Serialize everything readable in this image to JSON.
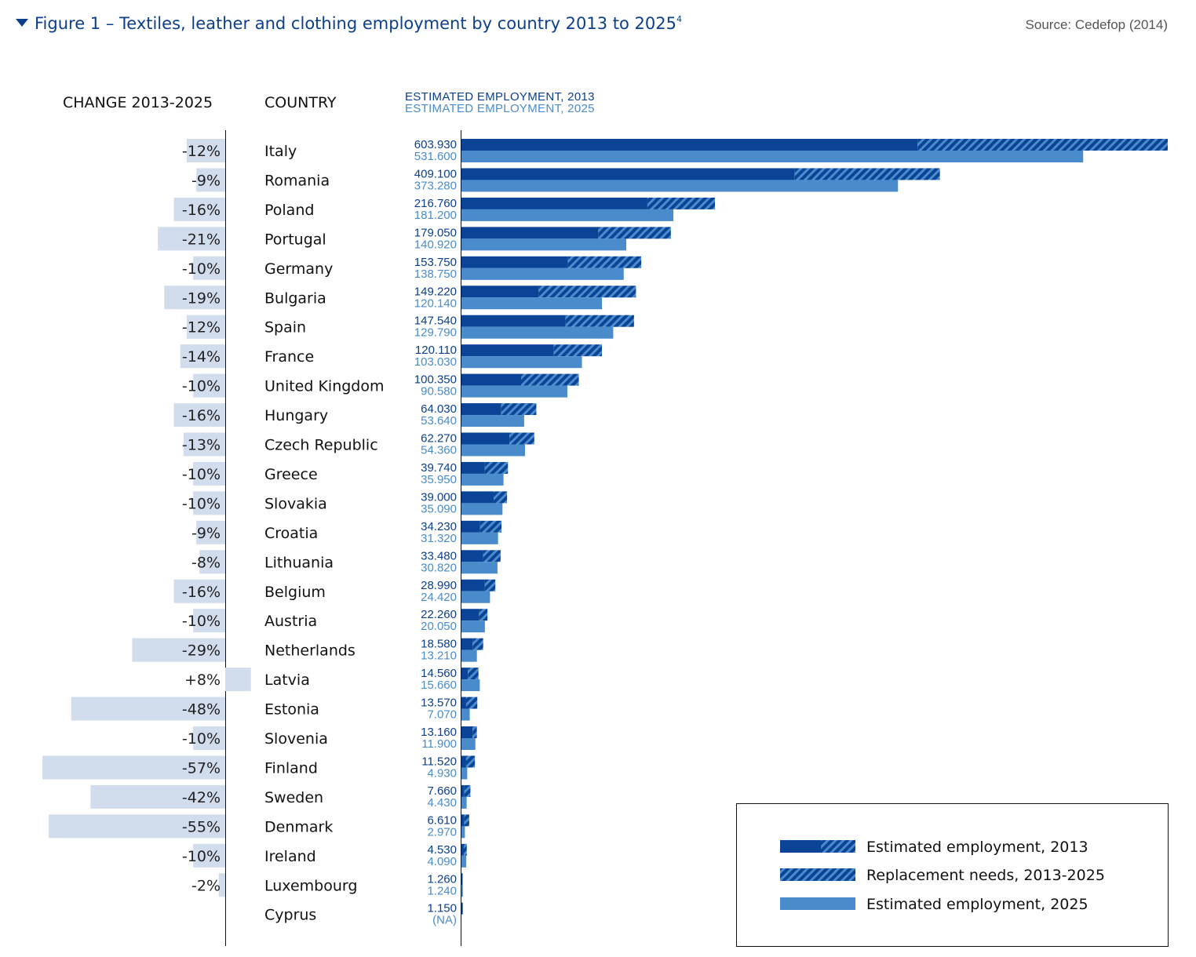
{
  "header": {
    "title": "Figure 1 – Textiles, leather and clothing employment by country 2013 to 2025",
    "title_sup": "4",
    "source": "Source: Cedefop (2014)"
  },
  "columns": {
    "change": "CHANGE 2013-2025",
    "country": "COUNTRY",
    "emp2013": "ESTIMATED EMPLOYMENT, 2013",
    "emp2025": "ESTIMATED EMPLOYMENT, 2025"
  },
  "legend": {
    "emp2013": "Estimated employment, 2013",
    "replacement": "Replacement needs, 2013-2025",
    "emp2025": "Estimated employment, 2025"
  },
  "colors": {
    "dark_blue": "#0b4496",
    "light_blue": "#4a8ccb",
    "change_bar": "#d1dcec",
    "title": "#0b3f8c"
  },
  "chart_data": {
    "type": "bar",
    "orientation": "horizontal",
    "title": "Figure 1 – Textiles, leather and clothing employment by country 2013 to 2025",
    "series_names": [
      "Estimated employment, 2013",
      "Replacement needs, 2013-2025",
      "Estimated employment, 2025"
    ],
    "xlim": [
      0,
      603930
    ],
    "rows": [
      {
        "country": "Italy",
        "change": -12,
        "change_label": "-12%",
        "e2013": 603930,
        "e2013_label": "603.930",
        "e2025": 531600,
        "e2025_label": "531.600",
        "solid2013": 390000
      },
      {
        "country": "Romania",
        "change": -9,
        "change_label": "-9%",
        "e2013": 409100,
        "e2013_label": "409.100",
        "e2025": 373280,
        "e2025_label": "373.280",
        "solid2013": 285000
      },
      {
        "country": "Poland",
        "change": -16,
        "change_label": "-16%",
        "e2013": 216760,
        "e2013_label": "216.760",
        "e2025": 181200,
        "e2025_label": "181.200",
        "solid2013": 159000
      },
      {
        "country": "Portugal",
        "change": -21,
        "change_label": "-21%",
        "e2013": 179050,
        "e2013_label": "179.050",
        "e2025": 140920,
        "e2025_label": "140.920",
        "solid2013": 117000
      },
      {
        "country": "Germany",
        "change": -10,
        "change_label": "-10%",
        "e2013": 153750,
        "e2013_label": "153.750",
        "e2025": 138750,
        "e2025_label": "138.750",
        "solid2013": 91000
      },
      {
        "country": "Bulgaria",
        "change": -19,
        "change_label": "-19%",
        "e2013": 149220,
        "e2013_label": "149.220",
        "e2025": 120140,
        "e2025_label": "120.140",
        "solid2013": 66000
      },
      {
        "country": "Spain",
        "change": -12,
        "change_label": "-12%",
        "e2013": 147540,
        "e2013_label": "147.540",
        "e2025": 129790,
        "e2025_label": "129.790",
        "solid2013": 89000
      },
      {
        "country": "France",
        "change": -14,
        "change_label": "-14%",
        "e2013": 120110,
        "e2013_label": "120.110",
        "e2025": 103030,
        "e2025_label": "103.030",
        "solid2013": 79000
      },
      {
        "country": "United Kingdom",
        "change": -10,
        "change_label": "-10%",
        "e2013": 100350,
        "e2013_label": "100.350",
        "e2025": 90580,
        "e2025_label": "90.580",
        "solid2013": 51000
      },
      {
        "country": "Hungary",
        "change": -16,
        "change_label": "-16%",
        "e2013": 64030,
        "e2013_label": "64.030",
        "e2025": 53640,
        "e2025_label": "53.640",
        "solid2013": 34000
      },
      {
        "country": "Czech Republic",
        "change": -13,
        "change_label": "-13%",
        "e2013": 62270,
        "e2013_label": "62.270",
        "e2025": 54360,
        "e2025_label": "54.360",
        "solid2013": 41000
      },
      {
        "country": "Greece",
        "change": -10,
        "change_label": "-10%",
        "e2013": 39740,
        "e2013_label": "39.740",
        "e2025": 35950,
        "e2025_label": "35.950",
        "solid2013": 20000
      },
      {
        "country": "Slovakia",
        "change": -10,
        "change_label": "-10%",
        "e2013": 39000,
        "e2013_label": "39.000",
        "e2025": 35090,
        "e2025_label": "35.090",
        "solid2013": 27500
      },
      {
        "country": "Croatia",
        "change": -9,
        "change_label": "-9%",
        "e2013": 34230,
        "e2013_label": "34.230",
        "e2025": 31320,
        "e2025_label": "31.320",
        "solid2013": 16000
      },
      {
        "country": "Lithuania",
        "change": -8,
        "change_label": "-8%",
        "e2013": 33480,
        "e2013_label": "33.480",
        "e2025": 30820,
        "e2025_label": "30.820",
        "solid2013": 18500
      },
      {
        "country": "Belgium",
        "change": -16,
        "change_label": "-16%",
        "e2013": 28990,
        "e2013_label": "28.990",
        "e2025": 24420,
        "e2025_label": "24.420",
        "solid2013": 20000
      },
      {
        "country": "Austria",
        "change": -10,
        "change_label": "-10%",
        "e2013": 22260,
        "e2013_label": "22.260",
        "e2025": 20050,
        "e2025_label": "20.050",
        "solid2013": 15000
      },
      {
        "country": "Netherlands",
        "change": -29,
        "change_label": "-29%",
        "e2013": 18580,
        "e2013_label": "18.580",
        "e2025": 13210,
        "e2025_label": "13.210",
        "solid2013": 9500
      },
      {
        "country": "Latvia",
        "change": 8,
        "change_label": "+8%",
        "e2013": 14560,
        "e2013_label": "14.560",
        "e2025": 15660,
        "e2025_label": "15.660",
        "solid2013": 5500
      },
      {
        "country": "Estonia",
        "change": -48,
        "change_label": "-48%",
        "e2013": 13570,
        "e2013_label": "13.570",
        "e2025": 7070,
        "e2025_label": "7.070",
        "solid2013": 4000
      },
      {
        "country": "Slovenia",
        "change": -10,
        "change_label": "-10%",
        "e2013": 13160,
        "e2013_label": "13.160",
        "e2025": 11900,
        "e2025_label": "11.900",
        "solid2013": 9500
      },
      {
        "country": "Finland",
        "change": -57,
        "change_label": "-57%",
        "e2013": 11520,
        "e2013_label": "11.520",
        "e2025": 4930,
        "e2025_label": "4.930",
        "solid2013": 4000
      },
      {
        "country": "Sweden",
        "change": -42,
        "change_label": "-42%",
        "e2013": 7660,
        "e2013_label": "7.660",
        "e2025": 4430,
        "e2025_label": "4.430",
        "solid2013": 2500
      },
      {
        "country": "Denmark",
        "change": -55,
        "change_label": "-55%",
        "e2013": 6610,
        "e2013_label": "6.610",
        "e2025": 2970,
        "e2025_label": "2.970",
        "solid2013": 2500
      },
      {
        "country": "Ireland",
        "change": -10,
        "change_label": "-10%",
        "e2013": 4530,
        "e2013_label": "4.530",
        "e2025": 4090,
        "e2025_label": "4.090",
        "solid2013": 2000
      },
      {
        "country": "Luxembourg",
        "change": -2,
        "change_label": "-2%",
        "e2013": 1260,
        "e2013_label": "1.260",
        "e2025": 1240,
        "e2025_label": "1.240",
        "solid2013": 1000
      },
      {
        "country": "Cyprus",
        "change": null,
        "change_label": "",
        "e2013": 1150,
        "e2013_label": "1.150",
        "e2025": null,
        "e2025_label": "(NA)",
        "solid2013": 1150
      }
    ]
  }
}
